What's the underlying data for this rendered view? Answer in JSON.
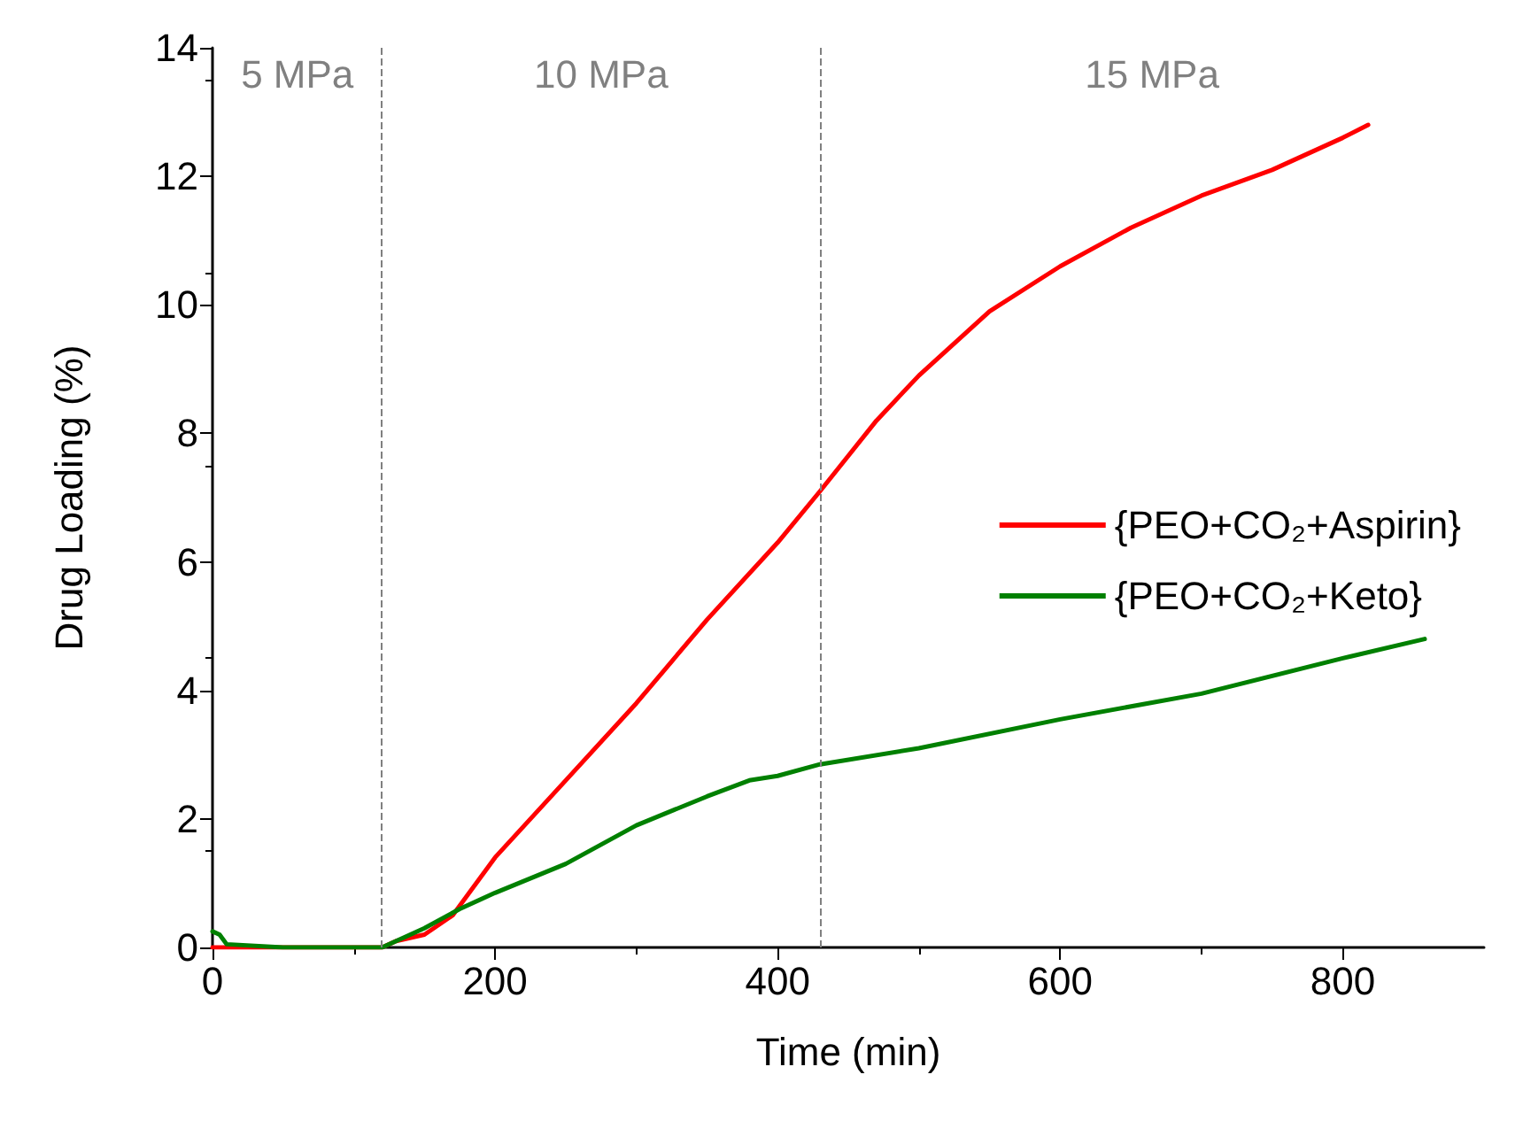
{
  "chart_data": {
    "type": "line",
    "xlabel": "Time (min)",
    "ylabel": "Drug Loading (%)",
    "xlim": [
      0,
      900
    ],
    "xticks": [
      0,
      200,
      400,
      600,
      800
    ],
    "ylim": [
      0,
      14
    ],
    "yticks": [
      0,
      2,
      4,
      6,
      8,
      10,
      12,
      14
    ],
    "grid": false,
    "legend": "right",
    "marker": "none",
    "line_style": "solid",
    "series": [
      {
        "name": "{PEO+CO₂+Aspirin}",
        "color": "#ff0000",
        "x": [
          0,
          60,
          120,
          130,
          150,
          170,
          200,
          250,
          300,
          350,
          400,
          430,
          470,
          500,
          550,
          600,
          650,
          700,
          750,
          800,
          818
        ],
        "values": [
          0,
          0,
          0,
          0.1,
          0.2,
          0.5,
          1.4,
          2.6,
          3.8,
          5.1,
          6.3,
          7.1,
          8.2,
          8.9,
          9.9,
          10.6,
          11.2,
          11.7,
          12.1,
          12.6,
          12.8
        ]
      },
      {
        "name": "{PEO+CO₂+Keto}",
        "color": "#008000",
        "x": [
          0,
          5,
          10,
          50,
          100,
          120,
          150,
          175,
          200,
          250,
          300,
          350,
          380,
          400,
          430,
          500,
          600,
          700,
          800,
          858
        ],
        "values": [
          0.25,
          0.2,
          0.05,
          0,
          0,
          0,
          0.3,
          0.6,
          0.85,
          1.3,
          1.9,
          2.35,
          2.6,
          2.67,
          2.85,
          3.1,
          3.55,
          3.95,
          4.5,
          4.8
        ]
      }
    ],
    "ref_lines": [
      {
        "axis": "x",
        "value": 120,
        "color": "#808080",
        "line_style": "dashed"
      },
      {
        "axis": "x",
        "value": 430,
        "color": "#808080",
        "line_style": "dashed"
      }
    ],
    "annotations": [
      "5 MPa",
      "10 MPa",
      "15 MPa"
    ]
  }
}
